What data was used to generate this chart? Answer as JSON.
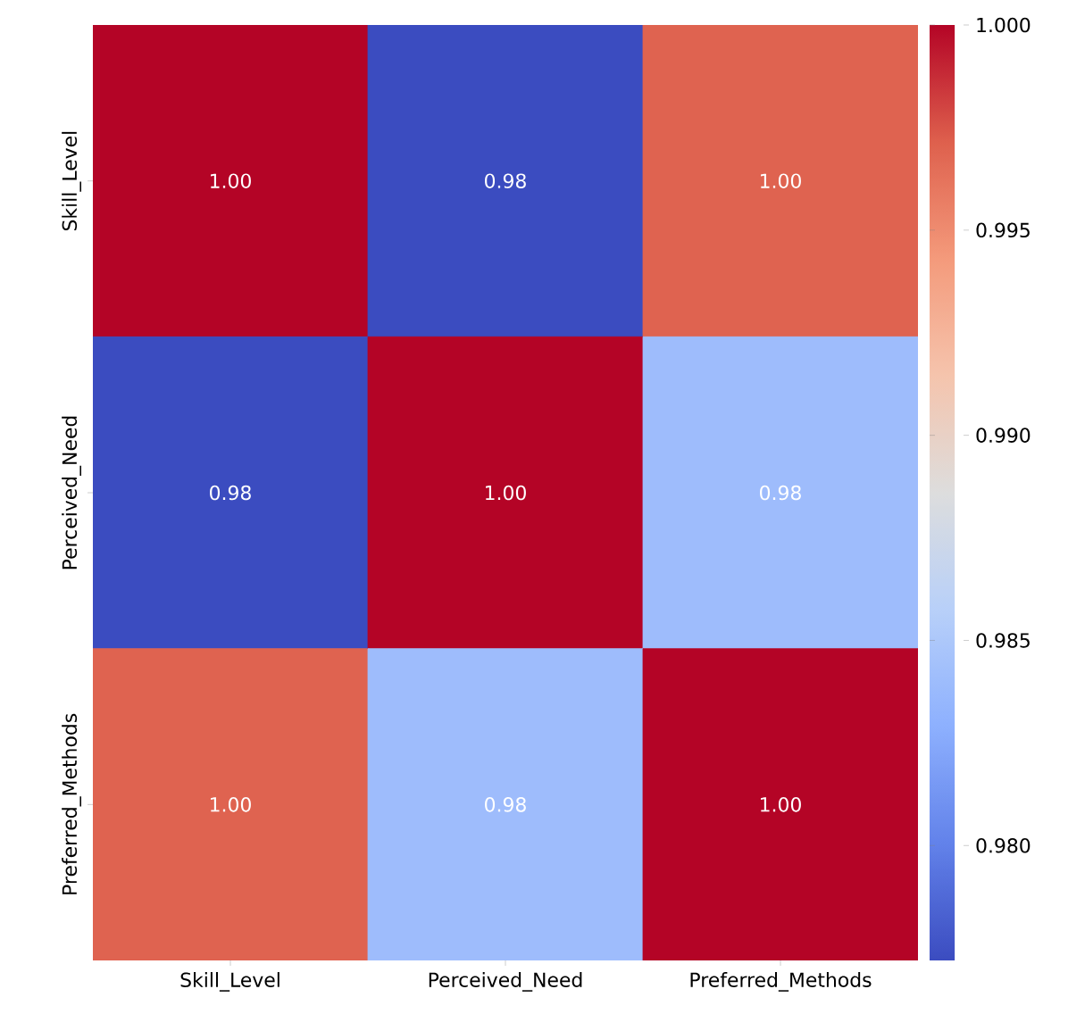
{
  "chart_data": {
    "type": "heatmap",
    "categories": [
      "Skill_Level",
      "Perceived_Need",
      "Preferred_Methods"
    ],
    "y_categories": [
      "Skill_Level",
      "Perceived_Need",
      "Preferred_Methods"
    ],
    "cells": [
      [
        1.0,
        0.977,
        0.997
      ],
      [
        0.977,
        1.0,
        0.984
      ],
      [
        0.997,
        0.984,
        1.0
      ]
    ],
    "cell_labels": [
      [
        "1.00",
        "0.98",
        "1.00"
      ],
      [
        "0.98",
        "1.00",
        "0.98"
      ],
      [
        "1.00",
        "0.98",
        "1.00"
      ]
    ],
    "clim": [
      0.9772,
      1.0
    ],
    "cticks": [
      {
        "value": 0.98,
        "label": "0.980"
      },
      {
        "value": 0.985,
        "label": "0.985"
      },
      {
        "value": 0.99,
        "label": "0.990"
      },
      {
        "value": 0.995,
        "label": "0.995"
      },
      {
        "value": 1.0,
        "label": "1.000"
      }
    ]
  }
}
